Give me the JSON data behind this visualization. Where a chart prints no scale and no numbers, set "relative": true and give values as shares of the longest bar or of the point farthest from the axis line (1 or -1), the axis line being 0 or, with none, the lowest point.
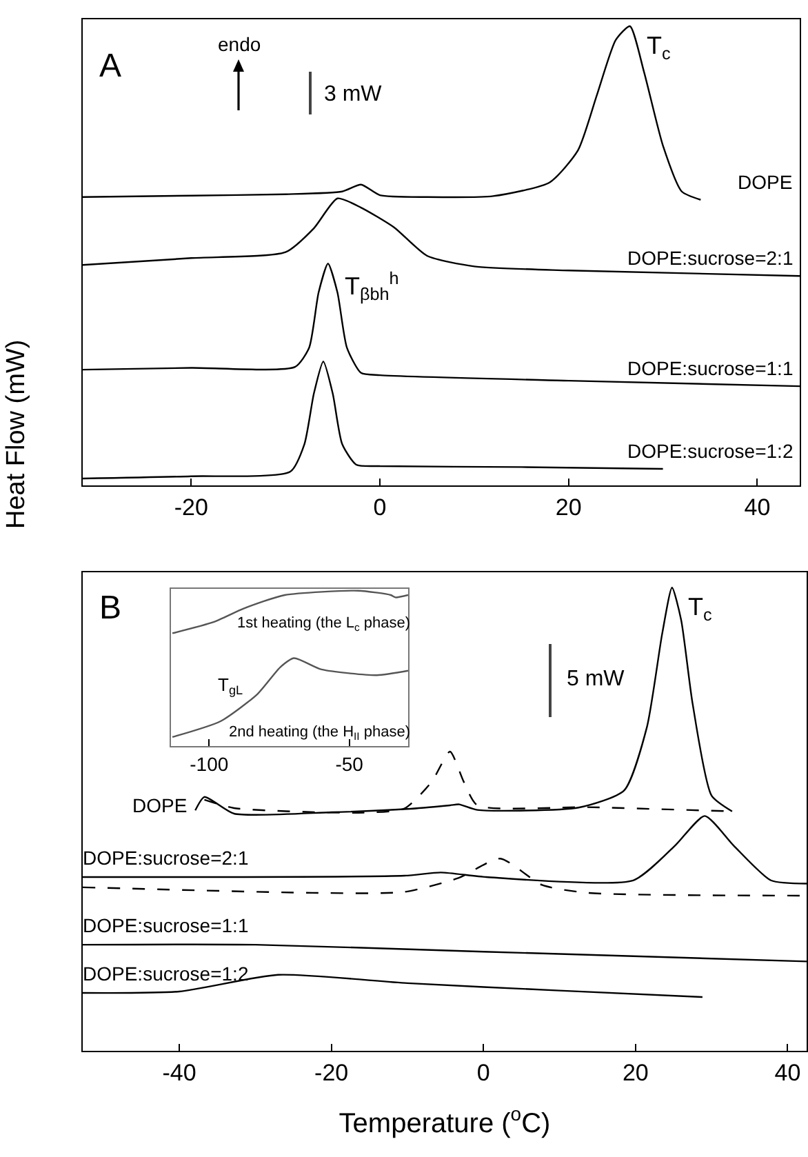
{
  "chart_data": [
    {
      "type": "line",
      "title": "A",
      "ylabel": "Heat Flow (mW)",
      "relative": true,
      "xlim": [
        -31.5,
        44.5
      ],
      "xticks": [
        -20,
        0,
        20,
        40
      ],
      "grid": false,
      "legend": false,
      "series": [
        {
          "name": "DOPE",
          "color": "#000000",
          "x": [
            -31.5,
            -20,
            -10,
            -4,
            -2,
            0,
            5,
            12,
            18,
            21,
            23,
            25,
            26.5,
            28,
            30,
            32,
            34
          ],
          "values": [
            0.628,
            0.631,
            0.634,
            0.64,
            0.655,
            0.632,
            0.628,
            0.63,
            0.66,
            0.73,
            0.85,
            0.97,
            1.0,
            0.9,
            0.74,
            0.64,
            0.622
          ]
        },
        {
          "name": "DOPE:sucrose=2:1",
          "color": "#000000",
          "x": [
            -31.5,
            -20,
            -10,
            -7,
            -4.5,
            -2,
            1.5,
            5,
            10,
            20,
            44.5
          ],
          "values": [
            0.48,
            0.495,
            0.508,
            0.56,
            0.625,
            0.605,
            0.562,
            0.5,
            0.477,
            0.468,
            0.456
          ]
        },
        {
          "name": "DOPE:sucrose=1:1",
          "color": "#000000",
          "x": [
            -31.5,
            -20,
            -9,
            -7.5,
            -6.5,
            -5.5,
            -4.5,
            -3.5,
            -2,
            0,
            20,
            44.5
          ],
          "values": [
            0.252,
            0.256,
            0.258,
            0.3,
            0.42,
            0.483,
            0.42,
            0.3,
            0.245,
            0.24,
            0.228,
            0.216
          ]
        },
        {
          "name": "DOPE:sucrose=1:2",
          "color": "#000000",
          "x": [
            -31.5,
            -20,
            -9.5,
            -8,
            -7,
            -6,
            -5,
            -4,
            -2.5,
            0,
            15,
            30
          ],
          "values": [
            0.015,
            0.02,
            0.03,
            0.09,
            0.2,
            0.27,
            0.2,
            0.09,
            0.045,
            0.042,
            0.04,
            0.036
          ]
        }
      ],
      "annotations": [
        "endo",
        "3 mW",
        {
          "text": "T$_{c}$",
          "x": 26.5,
          "y": 1.0
        },
        {
          "text": "T$_{βbh}$$^{h}$",
          "x": -5.5,
          "y": 0.483
        }
      ]
    },
    {
      "type": "line",
      "title": "B",
      "xlabel": "Temperature ($^{o}$C)",
      "relative": true,
      "xlim": [
        -52.7,
        42.5
      ],
      "xticks": [
        -40,
        -20,
        0,
        20,
        40
      ],
      "grid": false,
      "legend": false,
      "series": [
        {
          "name": "DOPE",
          "color": "#000000",
          "line_style": "solid",
          "x": [
            -37.9,
            -36.7,
            -32.8,
            -20,
            -10,
            -4.4,
            -3.2,
            -0.8,
            12.5,
            18.5,
            21.5,
            23.5,
            24.8,
            26,
            27.5,
            30,
            32.7
          ],
          "values": [
            0.519,
            0.548,
            0.512,
            0.515,
            0.522,
            0.53,
            0.532,
            0.52,
            0.525,
            0.562,
            0.699,
            0.9,
            1.0,
            0.93,
            0.75,
            0.551,
            0.517
          ]
        },
        {
          "color": "#000000",
          "line_style": "dashed",
          "x": [
            -36.7,
            -32.8,
            -16.5,
            -10.4,
            -6.8,
            -4.4,
            -2.6,
            -0.8,
            13.7,
            32.7
          ],
          "values": [
            0.542,
            0.524,
            0.514,
            0.523,
            0.581,
            0.646,
            0.581,
            0.53,
            0.526,
            0.517
          ]
        },
        {
          "name": "DOPE:sucrose=2:1",
          "color": "#000000",
          "line_style": "solid",
          "x": [
            -52.7,
            -10.4,
            -5.6,
            0.4,
            19.7,
            25.2,
            29.1,
            32.9,
            37.8,
            42.5
          ],
          "values": [
            0.375,
            0.378,
            0.385,
            0.375,
            0.368,
            0.443,
            0.507,
            0.443,
            0.368,
            0.361
          ]
        },
        {
          "color": "#000000",
          "line_style": "dashed",
          "x": [
            -52.7,
            -22.5,
            -10.4,
            -3.3,
            2.2,
            7.7,
            13.7,
            42.5
          ],
          "values": [
            0.353,
            0.341,
            0.343,
            0.373,
            0.415,
            0.358,
            0.341,
            0.335
          ]
        },
        {
          "name": "DOPE:sucrose=1:1",
          "color": "#000000",
          "line_style": "solid",
          "x": [
            -52.7,
            -30,
            0,
            42.5
          ],
          "values": [
            0.229,
            0.229,
            0.214,
            0.193
          ]
        },
        {
          "name": "DOPE:sucrose=1:2",
          "color": "#000000",
          "line_style": "solid",
          "x": [
            -52.7,
            -40,
            -27,
            -10,
            10,
            28.8
          ],
          "values": [
            0.125,
            0.128,
            0.164,
            0.146,
            0.13,
            0.116
          ]
        }
      ],
      "annotations": [
        "5 mW",
        {
          "text": "T$_{c}$",
          "x": 24.8,
          "y": 1.0
        }
      ]
    },
    {
      "type": "line",
      "relative": true,
      "xlim": [
        -113.6,
        -29
      ],
      "xticks": [
        -100,
        -50
      ],
      "grid": false,
      "legend": false,
      "series": [
        {
          "name": "1st heating (the L$_{c}$ phase)",
          "color": "#555555",
          "x": [
            -113.1,
            -98.4,
            -87.7,
            -73,
            -46.7,
            -35.2,
            -33.5,
            -29
          ],
          "values": [
            0.726,
            0.798,
            0.885,
            0.972,
            1.0,
            0.972,
            0.957,
            0.972
          ]
        },
        {
          "name": "2nd heating (the H$_{II}$ phase)",
          "color": "#555555",
          "x": [
            -113.1,
            -95.9,
            -82.8,
            -74.6,
            -69.7,
            -59.9,
            -40.2,
            -29
          ],
          "values": [
            0.058,
            0.16,
            0.334,
            0.508,
            0.566,
            0.493,
            0.456,
            0.485
          ]
        }
      ],
      "annotations": [
        "T$_{gL}$"
      ]
    }
  ]
}
